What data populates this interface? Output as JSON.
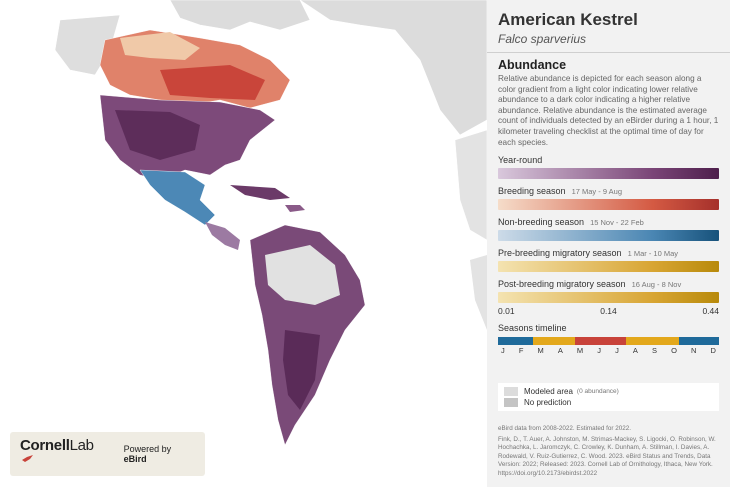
{
  "species": {
    "common_name": "American Kestrel",
    "scientific_name": "Falco sparverius"
  },
  "abundance": {
    "title": "Abundance",
    "description": "Relative abundance is depicted for each season along a color gradient from a light color indicating lower relative abundance to a dark color indicating a higher relative abundance. Relative abundance is the estimated average count of individuals detected by an eBirder during a 1 hour, 1 kilometer traveling checklist at the optimal time of day for each species."
  },
  "seasons": {
    "year_round": {
      "label": "Year-round",
      "dates": "",
      "color": "#6b3a68"
    },
    "breeding": {
      "label": "Breeding season",
      "dates": "17 May - 9 Aug",
      "color": "#c8433a"
    },
    "non_breeding": {
      "label": "Non-breeding season",
      "dates": "15 Nov - 22 Feb",
      "color": "#1f6a9a"
    },
    "pre_breeding": {
      "label": "Pre-breeding migratory season",
      "dates": "1 Mar - 10 May",
      "color": "#e3a81c"
    },
    "post_breeding": {
      "label": "Post-breeding migratory season",
      "dates": "16 Aug - 8 Nov",
      "color": "#e3a81c"
    }
  },
  "scale": {
    "min": "0.01",
    "mid": "0.14",
    "max": "0.44"
  },
  "timeline": {
    "title": "Seasons timeline",
    "months": [
      "J",
      "F",
      "M",
      "A",
      "M",
      "J",
      "J",
      "A",
      "S",
      "O",
      "N",
      "D"
    ]
  },
  "legend": {
    "modeled_area": "Modeled area",
    "modeled_area_note": "(0 abundance)",
    "no_prediction": "No prediction"
  },
  "footer": {
    "data_note": "eBird data from 2008-2022. Estimated for 2022.",
    "citation": "Fink, D., T. Auer, A. Johnston, M. Strimas-Mackey, S. Ligocki, O. Robinson, W. Hochachka, L. Jaromczyk, C. Crowley, K. Dunham, A. Stillman, I. Davies, A. Rodewald, V. Ruiz-Gutierrez, C. Wood. 2023. eBird Status and Trends, Data Version: 2022; Released: 2023. Cornell Lab of Ornithology, Ithaca, New York. https://doi.org/10.2173/ebirdst.2022"
  },
  "branding": {
    "org_bold": "Cornell",
    "org_light": "Lab",
    "powered_prefix": "Powered by ",
    "powered_brand": "eBird"
  }
}
